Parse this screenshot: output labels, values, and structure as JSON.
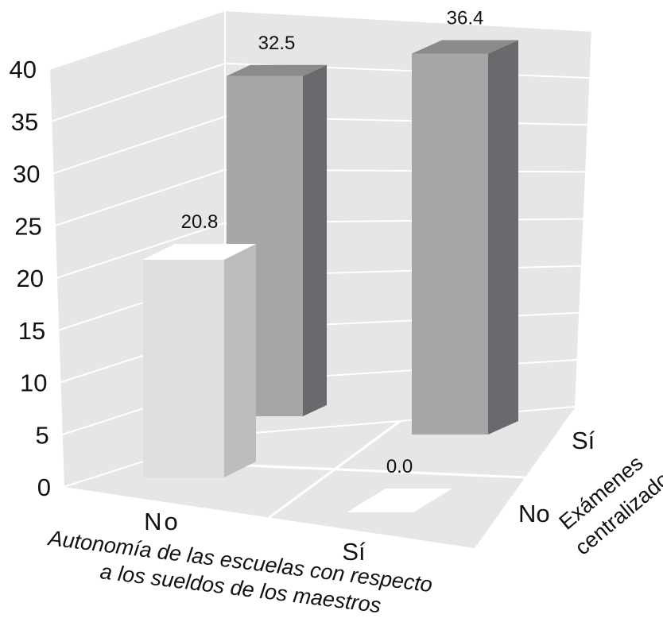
{
  "chart_data": {
    "type": "bar",
    "subtype": "3d-grid",
    "x_categories": [
      "No",
      "Sí"
    ],
    "z_categories": [
      "No",
      "Sí"
    ],
    "xlabel_line1": "Autonomía de las escuelas con respecto",
    "xlabel_line2": "a los sueldos de los maestros",
    "zlabel_line1": "Exámenes",
    "zlabel_line2": "centralizados",
    "ylim": [
      0,
      40
    ],
    "yticks": [
      "0",
      "5",
      "10",
      "15",
      "20",
      "25",
      "30",
      "35",
      "40"
    ],
    "bars": [
      {
        "x": "No",
        "z": "No",
        "value": 20.8,
        "label": "20.8"
      },
      {
        "x": "No",
        "z": "Sí",
        "value": 32.5,
        "label": "32.5"
      },
      {
        "x": "Sí",
        "z": "No",
        "value": 0.0,
        "label": "0.0"
      },
      {
        "x": "Sí",
        "z": "Sí",
        "value": 36.4,
        "label": "36.4"
      }
    ],
    "grid": true,
    "colors": {
      "walls": "#e6e6e6",
      "floor": "#e6e6e6",
      "gridline": "#ffffff",
      "front_bar_front": "#dedede",
      "front_bar_side": "#bdbdbd",
      "front_bar_top": "#ffffff",
      "back_bar_front": "#a6a6a6",
      "back_bar_side": "#6a6a6e",
      "back_bar_top": "#8b8b8b"
    }
  }
}
